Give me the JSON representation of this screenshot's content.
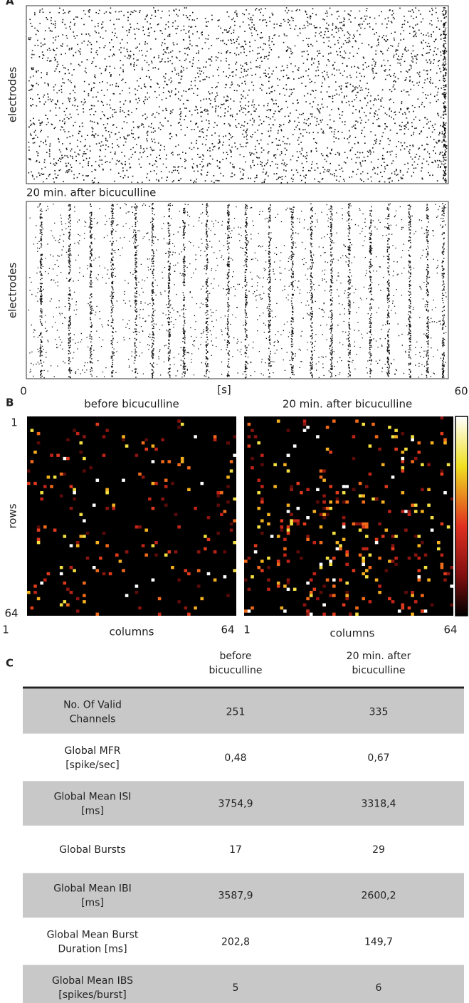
{
  "panel_a": {
    "label": "A",
    "raster_1_ylabel": "electrodes",
    "raster_2_title": "20 min. after bicuculline",
    "raster_2_ylabel": "electrodes",
    "x_start": "0",
    "x_unit": "[s]",
    "x_end": "60"
  },
  "panel_b": {
    "label": "B",
    "map_1_title": "before bicuculline",
    "map_2_title": "20 min. after bicuculline",
    "row_first": "1",
    "row_label": "rows",
    "row_last": "64",
    "map_1_col_first": "1",
    "map_1_col_label": "columns",
    "map_1_col_last": "64",
    "map_2_col_first": "1",
    "map_2_col_label": "columns",
    "map_2_col_last": "64"
  },
  "table": {
    "label": "C",
    "headers": [
      [
        "before",
        "bicuculline"
      ],
      [
        "20 min. after",
        "bicuculline"
      ]
    ],
    "rows": [
      [
        [
          "No. Of Valid",
          "Channels"
        ],
        "251",
        "335"
      ],
      [
        [
          "Global MFR",
          "[spike/sec]"
        ],
        "0,48",
        "0,67"
      ],
      [
        [
          "Global Mean ISI",
          "[ms]"
        ],
        "3754,9",
        "3318,4"
      ],
      [
        [
          "Global Bursts"
        ],
        "17",
        "29"
      ],
      [
        [
          "Global Mean IBI",
          "[ms]"
        ],
        "3587,9",
        "2600,2"
      ],
      [
        [
          "Global Mean Burst",
          "Duration [ms]"
        ],
        "202,8",
        "149,7"
      ],
      [
        [
          "Global Mean IBS",
          "[spikes/burst]"
        ],
        "5",
        "6"
      ]
    ]
  }
}
